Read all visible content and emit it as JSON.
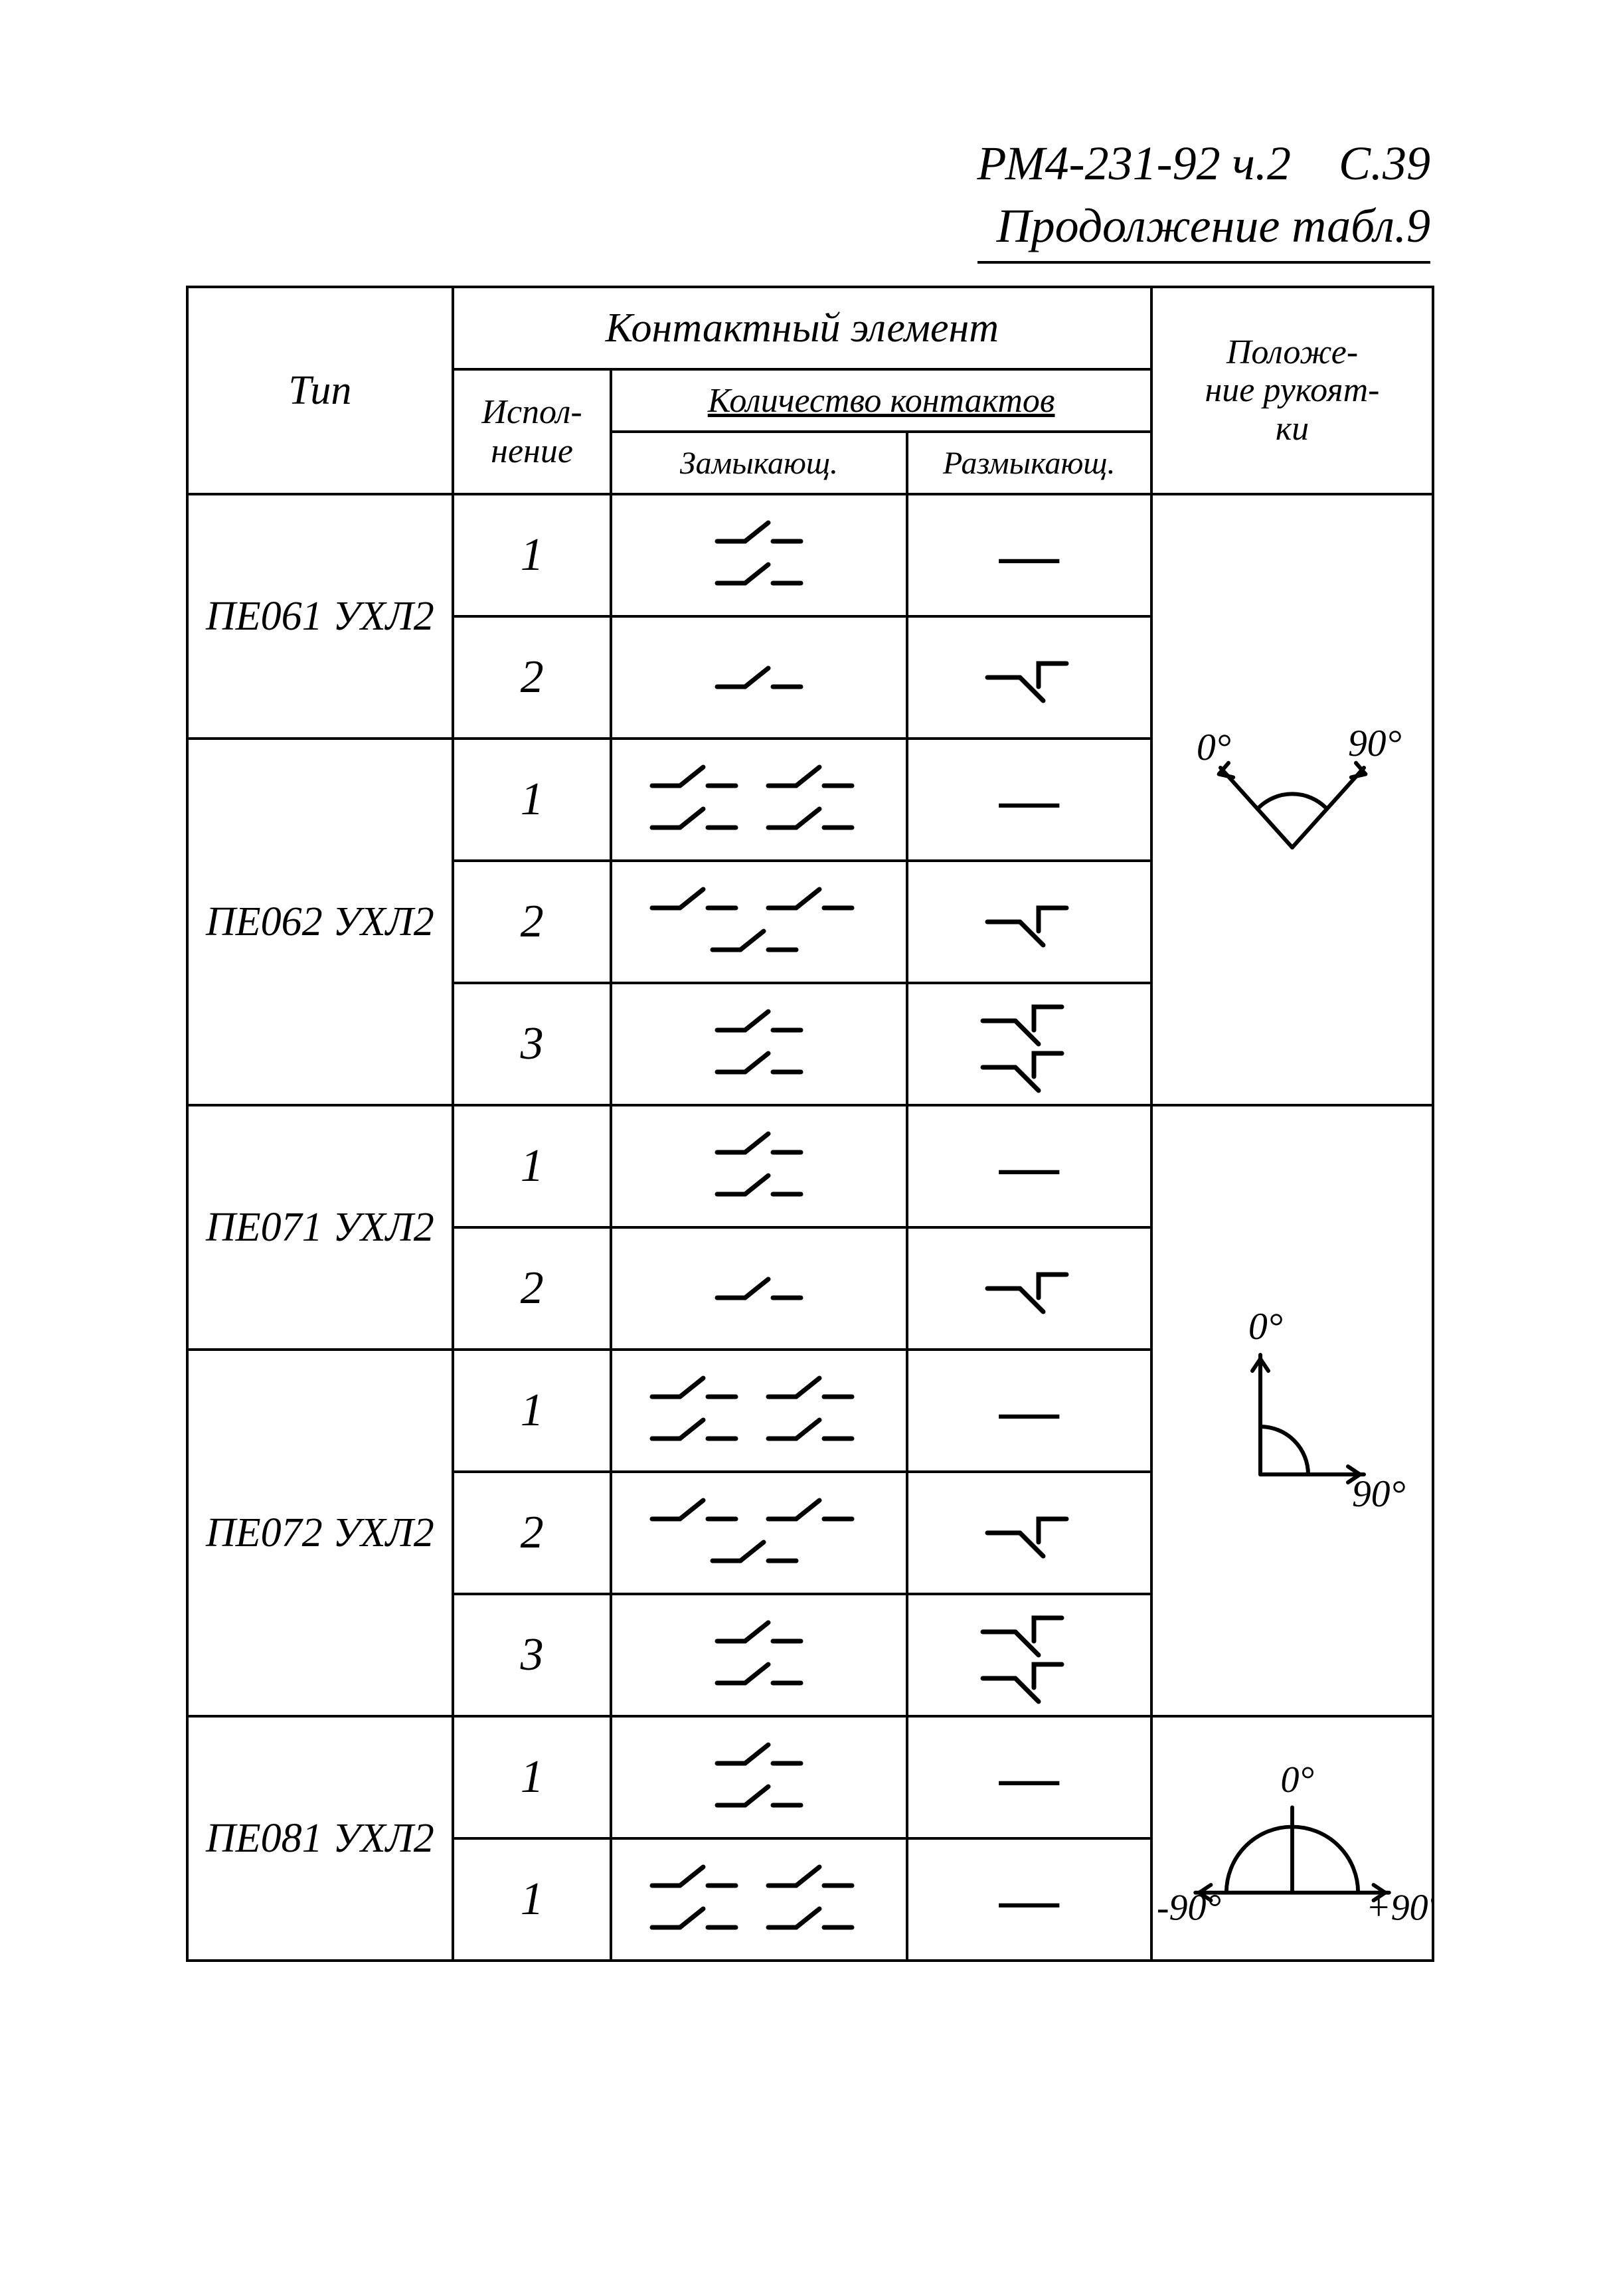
{
  "header": {
    "doc_code": "РМ4-231-92 ч.2",
    "page_label": "С.39",
    "continuation": "Продолжение табл.9"
  },
  "columns": {
    "type": "Тип",
    "contact_element": "Контактный элемент",
    "execution": "Испол-\nнение",
    "contact_count": "Количество контактов",
    "closing": "Замыкающ.",
    "opening": "Размыкающ.",
    "handle_pos": "Положе-\nние рукоят-\nки"
  },
  "groups": [
    {
      "type_label": "ПЕ061 УХЛ2",
      "rows": [
        {
          "exec": "1",
          "closing_sym": "pair2_single",
          "opening_sym": "dash"
        },
        {
          "exec": "2",
          "closing_sym": "single",
          "opening_sym": "break1"
        }
      ],
      "angle_diagram": "angle_0_90_v"
    },
    {
      "type_label": "ПЕ062 УХЛ2",
      "rows": [
        {
          "exec": "1",
          "closing_sym": "pair4_double",
          "opening_sym": "dash"
        },
        {
          "exec": "2",
          "closing_sym": "pair2_plus1",
          "opening_sym": "break1"
        },
        {
          "exec": "3",
          "closing_sym": "pair2_single",
          "opening_sym": "break2"
        }
      ],
      "angle_diagram": "merge_above"
    },
    {
      "type_label": "ПЕ071 УХЛ2",
      "rows": [
        {
          "exec": "1",
          "closing_sym": "pair2_single",
          "opening_sym": "dash"
        },
        {
          "exec": "2",
          "closing_sym": "single",
          "opening_sym": "break1"
        }
      ],
      "angle_diagram": "angle_0_down90"
    },
    {
      "type_label": "ПЕ072 УХЛ2",
      "rows": [
        {
          "exec": "1",
          "closing_sym": "pair4_double",
          "opening_sym": "dash"
        },
        {
          "exec": "2",
          "closing_sym": "pair2_plus1",
          "opening_sym": "break1"
        },
        {
          "exec": "3",
          "closing_sym": "pair2_single",
          "opening_sym": "break2"
        }
      ],
      "angle_diagram": "merge_above"
    },
    {
      "type_label": "ПЕ081 УХЛ2",
      "rows": [
        {
          "exec": "1",
          "closing_sym": "pair2_single",
          "opening_sym": "dash"
        },
        {
          "exec": "1",
          "closing_sym": "pair4_double",
          "opening_sym": "dash"
        }
      ],
      "angle_diagram": "angle_pm90"
    }
  ],
  "angle_labels": {
    "zero": "0°",
    "ninety": "90°",
    "minus90": "-90°",
    "plus90": "+90°"
  },
  "style": {
    "stroke": "#000000",
    "stroke_width": 5,
    "bg": "#ffffff",
    "font": "Comic Sans MS"
  }
}
